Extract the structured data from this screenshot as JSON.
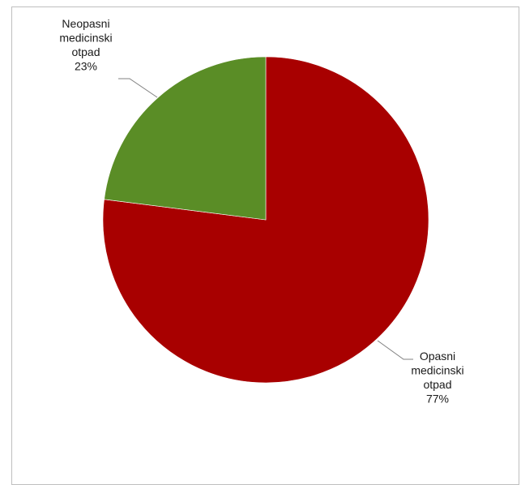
{
  "chart_data": {
    "type": "pie",
    "categories": [
      "Opasni medicinski otpad",
      "Neopasni medicinski otpad"
    ],
    "values": [
      77,
      23
    ],
    "colors": [
      "#a80000",
      "#5a8d26"
    ],
    "start_angle_deg": 0,
    "direction": "clockwise",
    "legend": "none",
    "data_labels": [
      {
        "lines": [
          "Opasni",
          "medicinski",
          "otpad",
          "77%"
        ]
      },
      {
        "lines": [
          "Neopasni",
          "medicinski",
          "otpad",
          "23%"
        ]
      }
    ]
  }
}
